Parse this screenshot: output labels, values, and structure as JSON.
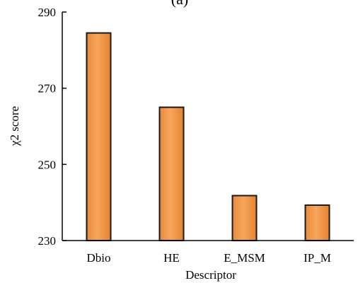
{
  "chart_data": {
    "type": "bar",
    "title": "(a)",
    "xlabel": "Descriptor",
    "ylabel": "χ2 score",
    "categories": [
      "Dbio",
      "HE",
      "E_MSM",
      "IP_M"
    ],
    "values": [
      284.5,
      265.0,
      241.8,
      239.3
    ],
    "ylim": [
      230,
      290
    ],
    "yticks": [
      230,
      250,
      270,
      290
    ],
    "ytick_labels": [
      "230",
      "250",
      "270",
      "290"
    ],
    "grid": false,
    "legend": "none",
    "bar_color": "#F39A4B",
    "bar_edge_color": "#1a1a1a"
  }
}
